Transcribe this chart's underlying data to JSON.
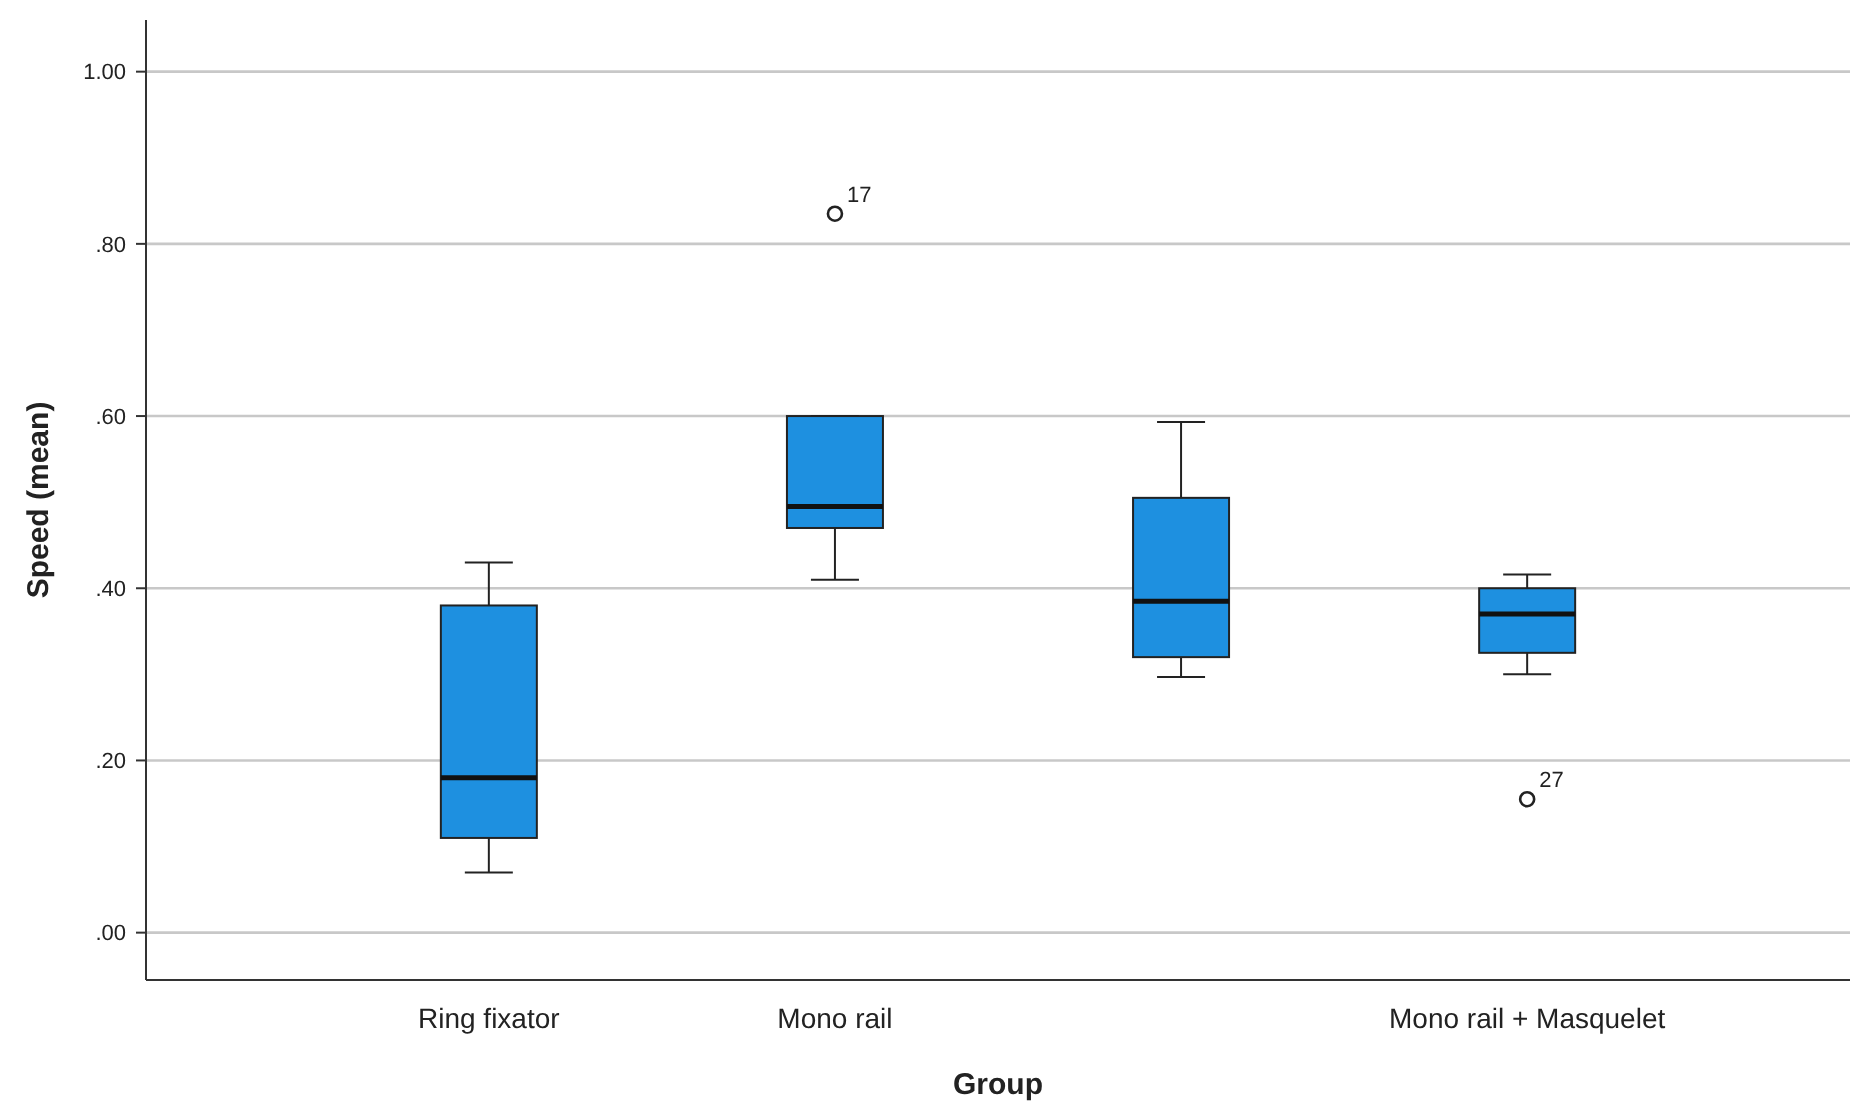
{
  "chart_data": {
    "type": "box",
    "xlabel": "Group",
    "ylabel": "Speed (mean)",
    "categories": [
      "Ring fixator",
      "Mono rail",
      null,
      "Mono rail + Masquelet"
    ],
    "color": "#1e90e0",
    "boxes": [
      {
        "low": 0.07,
        "q1": 0.11,
        "median": 0.18,
        "q3": 0.38,
        "high": 0.43
      },
      {
        "low": 0.41,
        "q1": 0.47,
        "median": 0.495,
        "q3": 0.6,
        "high": 0.6,
        "outliers": [
          0.835
        ]
      },
      {
        "low": 0.297,
        "q1": 0.32,
        "median": 0.385,
        "q3": 0.505,
        "high": 0.593
      },
      {
        "low": 0.3,
        "q1": 0.325,
        "median": 0.37,
        "q3": 0.4,
        "high": 0.416,
        "outliers": [
          0.155
        ]
      }
    ],
    "ylim": [
      -0.055,
      1.06
    ],
    "yticks": [
      {
        "value": 0,
        "label": ".00"
      },
      {
        "value": 0.2,
        "label": ".20"
      },
      {
        "value": 0.4,
        "label": ".40"
      },
      {
        "value": 0.6,
        "label": ".60"
      },
      {
        "value": 0.8,
        "label": ".80"
      },
      {
        "value": 1,
        "label": "1.00"
      }
    ],
    "grid": "y",
    "annotations": [
      "17",
      "27"
    ]
  }
}
